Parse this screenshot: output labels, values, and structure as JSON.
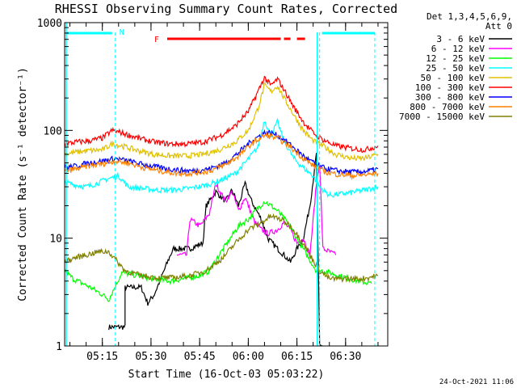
{
  "chart_data": {
    "type": "line",
    "title": "RHESSI Observing Summary Count Rates, Corrected",
    "xlabel": "Start Time (16-Oct-03 05:03:22)",
    "ylabel": "Corrected Count Rate (s⁻¹ detector⁻¹)",
    "ylog": true,
    "ylim": [
      1,
      1000
    ],
    "xlim": [
      "05:03:22",
      "06:43:00"
    ],
    "x_ticks": [
      "05:15",
      "05:30",
      "05:45",
      "06:00",
      "06:15",
      "06:30"
    ],
    "y_ticks": [
      "1",
      "10",
      "100",
      "1000"
    ],
    "legend_title": [
      "Det 1,3,4,5,6,9,",
      "Att 0"
    ],
    "legend_placement": "right",
    "flags": {
      "N_label": "N",
      "F_label": "F"
    },
    "footer_date": "24-Oct-2021 11:06",
    "series": [
      {
        "name": "3 - 6 keV",
        "color": "#000000",
        "x": [
          "05:17",
          "05:22",
          "05:22",
          "05:27",
          "05:29",
          "05:31",
          "05:36",
          "05:37",
          "05:42",
          "05:46",
          "05:47",
          "05:50",
          "05:53",
          "05:55",
          "05:57",
          "05:59",
          "06:01",
          "06:04",
          "06:06",
          "06:09",
          "06:11",
          "06:13",
          "06:15",
          "06:17",
          "06:19",
          "06:21",
          "06:22",
          "06:23"
        ],
        "values": [
          1.5,
          1.5,
          3.5,
          3.5,
          2.5,
          3.0,
          7.0,
          8.0,
          8.0,
          9.0,
          20,
          27,
          22,
          28,
          20,
          32,
          22,
          15,
          10,
          8,
          7,
          6,
          8,
          10,
          20,
          60,
          1.0,
          1.0
        ]
      },
      {
        "name": "6 - 12 keV",
        "color": "#ff00ff",
        "x": [
          "05:38",
          "05:41",
          "05:42",
          "05:45",
          "05:46",
          "05:48",
          "05:50",
          "05:53",
          "05:55",
          "05:57",
          "05:59",
          "06:02",
          "06:04",
          "06:06",
          "06:09",
          "06:11",
          "06:13",
          "06:15",
          "06:17",
          "06:19",
          "06:21",
          "06:22",
          "06:23",
          "06:27"
        ],
        "values": [
          7,
          7,
          15,
          13,
          14,
          17,
          32,
          22,
          27,
          18,
          24,
          14,
          12,
          11,
          12,
          14,
          12,
          9,
          10,
          7,
          32,
          50,
          8,
          7
        ]
      },
      {
        "name": "12 - 25 keV",
        "color": "#00ff00",
        "x": [
          "05:03:22",
          "05:06",
          "05:09",
          "05:12",
          "05:15",
          "05:17",
          "05:21",
          "05:26",
          "05:30",
          "05:36",
          "05:40",
          "05:45",
          "05:48",
          "05:51",
          "05:54",
          "05:57",
          "06:00",
          "06:03",
          "06:05",
          "06:07",
          "06:09",
          "06:12",
          "06:15",
          "06:18",
          "06:21",
          "06:23",
          "06:28",
          "06:34",
          "06:38"
        ],
        "values": [
          5,
          4.2,
          3.8,
          3.4,
          3.0,
          2.7,
          4.8,
          4.5,
          4.2,
          4.0,
          4.2,
          4.5,
          5.0,
          7.0,
          9.5,
          13,
          15,
          19,
          22,
          20,
          18,
          14,
          10,
          7,
          5,
          5,
          4.5,
          4.0,
          3.8
        ]
      },
      {
        "name": "25 - 50 keV",
        "color": "#00ffff",
        "x": [
          "05:03:22",
          "05:07",
          "05:10",
          "05:13",
          "05:16",
          "05:20",
          "05:23",
          "05:27",
          "05:32",
          "05:37",
          "05:42",
          "05:47",
          "05:52",
          "05:56",
          "05:59",
          "06:03",
          "06:05",
          "06:07",
          "06:09",
          "06:11",
          "06:14",
          "06:17",
          "06:20",
          "06:22",
          "06:25",
          "06:30",
          "06:36",
          "06:40"
        ],
        "values": [
          33,
          31,
          30,
          32,
          35,
          38,
          30,
          29,
          28,
          28,
          29,
          31,
          35,
          40,
          50,
          70,
          125,
          90,
          120,
          80,
          55,
          45,
          38,
          30,
          25,
          26,
          28,
          30
        ]
      },
      {
        "name": "50 - 100 keV",
        "color": "#e0c000",
        "x": [
          "05:03:22",
          "05:07",
          "05:11",
          "05:15",
          "05:18",
          "05:21",
          "05:26",
          "05:31",
          "05:36",
          "05:41",
          "05:46",
          "05:51",
          "05:56",
          "06:00",
          "06:03",
          "06:05",
          "06:07",
          "06:09",
          "06:11",
          "06:14",
          "06:17",
          "06:20",
          "06:23",
          "06:27",
          "06:32",
          "06:36",
          "06:40"
        ],
        "values": [
          60,
          63,
          65,
          66,
          75,
          72,
          65,
          60,
          58,
          58,
          60,
          66,
          78,
          100,
          160,
          260,
          230,
          260,
          200,
          140,
          100,
          80,
          72,
          60,
          55,
          55,
          60
        ]
      },
      {
        "name": "100 - 300 keV",
        "color": "#ff0000",
        "x": [
          "05:03:22",
          "05:07",
          "05:11",
          "05:15",
          "05:18",
          "05:21",
          "05:26",
          "05:31",
          "05:36",
          "05:41",
          "05:46",
          "05:51",
          "05:56",
          "06:00",
          "06:03",
          "06:05",
          "06:07",
          "06:09",
          "06:11",
          "06:14",
          "06:17",
          "06:20",
          "06:23",
          "06:27",
          "06:32",
          "06:36",
          "06:40"
        ],
        "values": [
          75,
          78,
          80,
          85,
          100,
          95,
          85,
          78,
          75,
          75,
          78,
          88,
          110,
          150,
          230,
          310,
          260,
          300,
          240,
          165,
          120,
          95,
          82,
          72,
          68,
          66,
          72
        ]
      },
      {
        "name": "300 - 800 keV",
        "color": "#0000ff",
        "x": [
          "05:03:22",
          "05:07",
          "05:11",
          "05:15",
          "05:19",
          "05:23",
          "05:28",
          "05:33",
          "05:38",
          "05:43",
          "05:48",
          "05:53",
          "05:57",
          "06:01",
          "06:05",
          "06:07",
          "06:09",
          "06:12",
          "06:15",
          "06:18",
          "06:21",
          "06:24",
          "06:28",
          "06:33",
          "06:37",
          "06:40"
        ],
        "values": [
          45,
          47,
          50,
          52,
          55,
          52,
          48,
          45,
          43,
          42,
          44,
          50,
          62,
          80,
          95,
          95,
          90,
          78,
          65,
          55,
          48,
          44,
          42,
          41,
          42,
          44
        ]
      },
      {
        "name": "800 - 7000 keV",
        "color": "#ff8000",
        "x": [
          "05:03:22",
          "05:07",
          "05:11",
          "05:15",
          "05:19",
          "05:23",
          "05:28",
          "05:33",
          "05:38",
          "05:43",
          "05:48",
          "05:53",
          "05:57",
          "06:01",
          "06:05",
          "06:07",
          "06:09",
          "06:12",
          "06:15",
          "06:18",
          "06:21",
          "06:24",
          "06:28",
          "06:33",
          "06:37",
          "06:40"
        ],
        "values": [
          42,
          44,
          47,
          49,
          52,
          50,
          45,
          42,
          40,
          40,
          42,
          48,
          58,
          75,
          90,
          88,
          85,
          74,
          62,
          52,
          45,
          41,
          39,
          38,
          39,
          40
        ]
      },
      {
        "name": "7000 - 15000 keV",
        "color": "#808000",
        "x": [
          "05:03:22",
          "05:06",
          "05:10",
          "05:14",
          "05:17",
          "05:22",
          "05:27",
          "05:32",
          "05:37",
          "05:42",
          "05:47",
          "05:52",
          "05:56",
          "06:00",
          "06:04",
          "06:07",
          "06:10",
          "06:13",
          "06:16",
          "06:19",
          "06:22",
          "06:25",
          "06:30",
          "06:35",
          "06:40"
        ],
        "values": [
          6,
          6.5,
          7,
          7.5,
          7.5,
          5.0,
          4.5,
          4.3,
          4.3,
          4.5,
          5.0,
          6.5,
          9,
          12,
          14,
          16,
          15,
          13,
          10,
          7,
          5,
          4.2,
          4.2,
          4.2,
          4.5
        ]
      }
    ]
  }
}
